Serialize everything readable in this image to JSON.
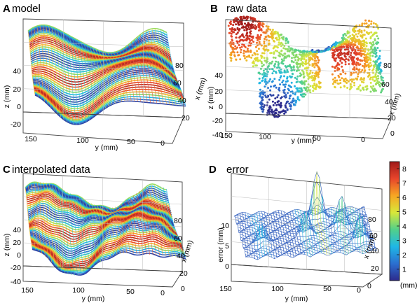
{
  "figure": {
    "panels": [
      {
        "key": "A",
        "letter": "A",
        "title": "model",
        "kind": "model",
        "zlabel": "z (mm)",
        "ylabel": "y (mm)",
        "xlabel": "x (mm)",
        "zticks": [
          "40",
          "20",
          "0",
          "-20"
        ],
        "yticks": [
          "150",
          "100",
          "50",
          "0"
        ],
        "xticks": [
          "80",
          "60",
          "40",
          "20"
        ]
      },
      {
        "key": "B",
        "letter": "B",
        "title": "raw data",
        "kind": "raw",
        "zlabel": "z (mm)",
        "ylabel": "y (mm)",
        "xlabel": "x (mm)",
        "zticks": [
          "40",
          "20",
          "0",
          "-20",
          "-40"
        ],
        "yticks": [
          "150",
          "100",
          "50",
          "0"
        ],
        "xticks": [
          "80",
          "60",
          "40",
          "20",
          "0"
        ]
      },
      {
        "key": "C",
        "letter": "C",
        "title": "interpolated data",
        "kind": "interp",
        "zlabel": "z (mm)",
        "ylabel": "y (mm)",
        "xlabel": "x (mm)",
        "zticks": [
          "40",
          "20",
          "0",
          "-20",
          "-40"
        ],
        "yticks": [
          "150",
          "100",
          "50",
          "0"
        ],
        "xticks": [
          "80",
          "60",
          "40",
          "20",
          "0"
        ]
      },
      {
        "key": "D",
        "letter": "D",
        "title": "error",
        "kind": "error",
        "zlabel": "error (mm)",
        "ylabel": "y (mm)",
        "xlabel": "x (mm)",
        "zticks": [
          "10",
          "5",
          "0"
        ],
        "yticks": [
          "150",
          "100",
          "50",
          "0"
        ],
        "xticks": [
          "80",
          "60",
          "40",
          "20",
          "0"
        ]
      }
    ],
    "colorbar": {
      "ticks": [
        "8",
        "7",
        "6",
        "5",
        "4",
        "3",
        "2",
        "1"
      ],
      "unit": "(mm)",
      "colors": [
        "#2d2a8c",
        "#2b6fd0",
        "#1fb7e6",
        "#52d08a",
        "#d8e83a",
        "#f6a623",
        "#e8452b",
        "#a11a1a"
      ]
    }
  }
}
